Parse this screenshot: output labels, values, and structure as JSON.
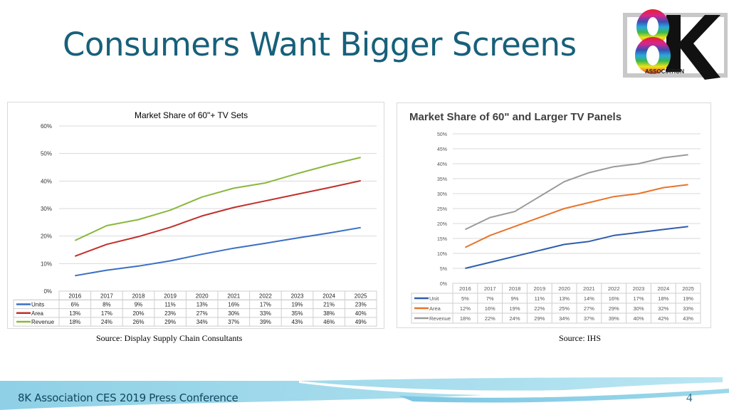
{
  "slide": {
    "title": "Consumers Want Bigger Screens",
    "logo": {
      "main": "8K",
      "sub": "ASSOCIATION"
    },
    "footer": "8K Association CES 2019 Press Conference",
    "page_number": "4"
  },
  "chart_data": [
    {
      "type": "line",
      "title": "Market Share of 60\"+ TV Sets",
      "source": "Source: Display Supply Chain Consultants",
      "xlabel": "",
      "ylabel": "",
      "ylim": [
        0,
        60
      ],
      "yticks": [
        "0%",
        "10%",
        "20%",
        "30%",
        "40%",
        "50%",
        "60%"
      ],
      "grid": true,
      "legend": "data-table",
      "categories": [
        "2016",
        "2017",
        "2018",
        "2019",
        "2020",
        "2021",
        "2022",
        "2023",
        "2024",
        "2025"
      ],
      "series": [
        {
          "name": "Units",
          "color": "#3a6fc4",
          "values": [
            5.6,
            7.6,
            9.1,
            11,
            13.4,
            15.6,
            17.4,
            19.3,
            21.1,
            23.1
          ],
          "labels": [
            "6%",
            "8%",
            "9%",
            "11%",
            "13%",
            "16%",
            "17%",
            "19%",
            "21%",
            "23%"
          ]
        },
        {
          "name": "Area",
          "color": "#c0302b",
          "values": [
            12.7,
            17,
            19.8,
            23.2,
            27.3,
            30.4,
            32.8,
            35.2,
            37.6,
            40.1
          ],
          "labels": [
            "13%",
            "17%",
            "20%",
            "23%",
            "27%",
            "30%",
            "33%",
            "35%",
            "38%",
            "40%"
          ]
        },
        {
          "name": "Revenue",
          "color": "#8ab83d",
          "values": [
            18.4,
            23.8,
            26,
            29.4,
            34.2,
            37.4,
            39.3,
            42.7,
            45.8,
            48.6
          ],
          "labels": [
            "18%",
            "24%",
            "26%",
            "29%",
            "34%",
            "37%",
            "39%",
            "43%",
            "46%",
            "49%"
          ]
        }
      ]
    },
    {
      "type": "line",
      "title": "Market Share of 60\" and Larger TV Panels",
      "source": "Source: IHS",
      "xlabel": "",
      "ylabel": "",
      "ylim": [
        0,
        50
      ],
      "yticks": [
        "0%",
        "5%",
        "10%",
        "15%",
        "20%",
        "25%",
        "30%",
        "35%",
        "40%",
        "45%",
        "50%"
      ],
      "grid": true,
      "legend": "data-table",
      "categories": [
        "2016",
        "2017",
        "2018",
        "2019",
        "2020",
        "2021",
        "2022",
        "2023",
        "2024",
        "2025"
      ],
      "series": [
        {
          "name": "Unit",
          "color": "#2f5ead",
          "values": [
            5,
            7,
            9,
            11,
            13,
            14,
            16,
            17,
            18,
            19
          ],
          "labels": [
            "5%",
            "7%",
            "9%",
            "11%",
            "13%",
            "14%",
            "16%",
            "17%",
            "18%",
            "19%"
          ]
        },
        {
          "name": "Area",
          "color": "#e8742a",
          "values": [
            12,
            16,
            19,
            22,
            25,
            27,
            29,
            30,
            32,
            33
          ],
          "labels": [
            "12%",
            "16%",
            "19%",
            "22%",
            "25%",
            "27%",
            "29%",
            "30%",
            "32%",
            "33%"
          ]
        },
        {
          "name": "Revenue",
          "color": "#9a9a9a",
          "values": [
            18,
            22,
            24,
            29,
            34,
            37,
            39,
            40,
            42,
            43
          ],
          "labels": [
            "18%",
            "22%",
            "24%",
            "29%",
            "34%",
            "37%",
            "39%",
            "40%",
            "42%",
            "43%"
          ]
        }
      ]
    }
  ]
}
